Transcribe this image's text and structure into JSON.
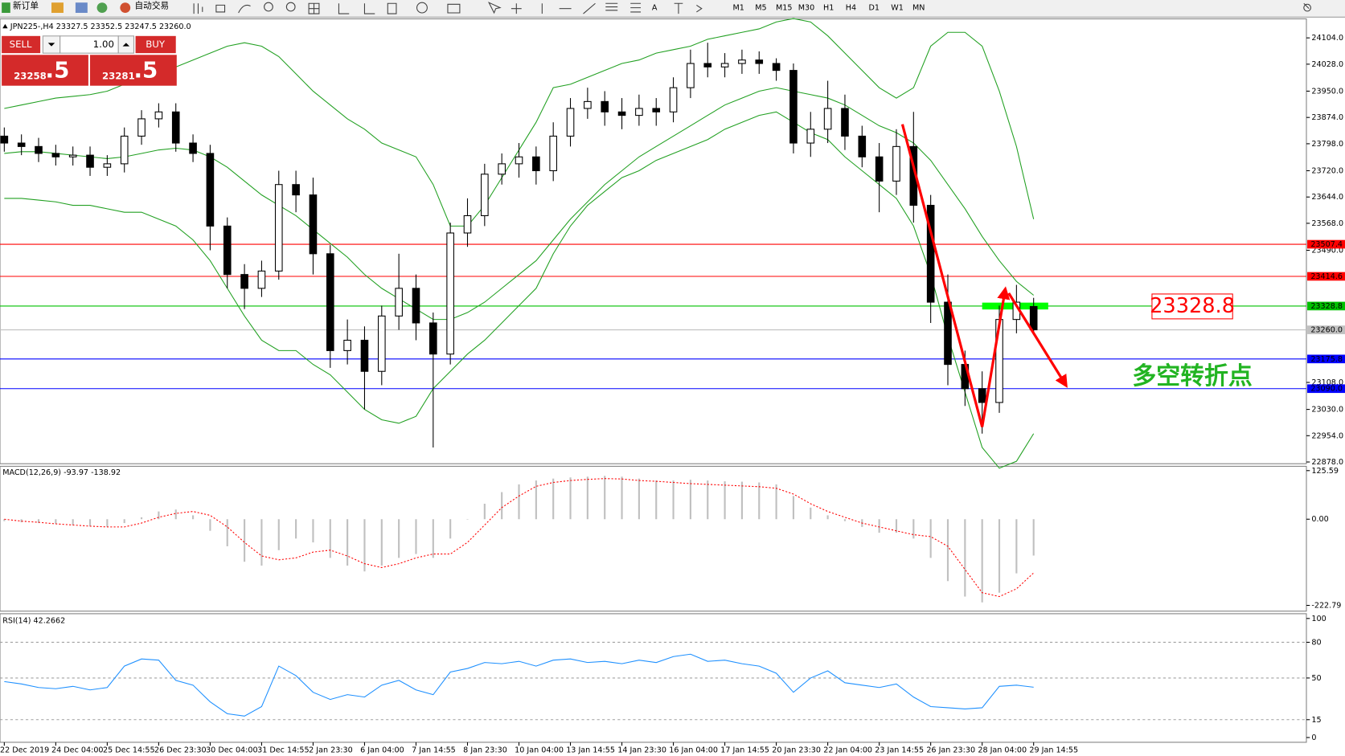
{
  "toolbar": {
    "new_order": "新订单",
    "auto_trade": "自动交易",
    "periods": [
      "M1",
      "M5",
      "M15",
      "M30",
      "H1",
      "H4",
      "D1",
      "W1",
      "MN"
    ]
  },
  "trade_panel": {
    "sell": "SELL",
    "buy": "BUY",
    "volume": "1.00",
    "bid_main": "23258",
    "bid_frac": ".5",
    "ask_main": "23281",
    "ask_frac": ".5"
  },
  "chart_data": {
    "type": "candlestick",
    "title": "JPN225-,H4  23327.5 23352.5 23247.5 23260.0",
    "categories": [
      "22 Dec 2019",
      null,
      null,
      "24 Dec 04:00",
      null,
      null,
      "25 Dec 14:55",
      null,
      null,
      "26 Dec 23:30",
      null,
      null,
      "30 Dec 04:00",
      null,
      null,
      "31 Dec 14:55",
      null,
      null,
      "2 Jan 23:30",
      null,
      null,
      "6 Jan 04:00",
      null,
      null,
      "7 Jan 14:55",
      null,
      null,
      "8 Jan 23:30",
      null,
      null,
      "10 Jan 04:00",
      null,
      null,
      "13 Jan 14:55",
      null,
      null,
      "14 Jan 23:30",
      null,
      null,
      "16 Jan 04:00",
      null,
      null,
      "17 Jan 14:55",
      null,
      null,
      "20 Jan 23:30",
      null,
      null,
      "22 Jan 04:00",
      null,
      null,
      "23 Jan 14:55",
      null,
      null,
      "26 Jan 23:30",
      null,
      null,
      "28 Jan 04:00",
      null,
      null,
      "29 Jan 14:55"
    ],
    "open": [
      23820,
      23800,
      23790,
      23770,
      23760,
      23765,
      23730,
      23740,
      23820,
      23870,
      23890,
      23800,
      23770,
      23560,
      23420,
      23380,
      23430,
      23680,
      23650,
      23480,
      23200,
      23230,
      23140,
      23300,
      23380,
      23280,
      23190,
      23540,
      23590,
      23710,
      23740,
      23760,
      23720,
      23820,
      23900,
      23920,
      23890,
      23880,
      23900,
      23890,
      23960,
      24030,
      24020,
      24030,
      24040,
      24030,
      24010,
      23800,
      23840,
      23900,
      23820,
      23760,
      23690,
      23790,
      23620,
      23340,
      23160,
      23090,
      23050,
      23290,
      23327.5
    ],
    "high": [
      23845,
      23825,
      23815,
      23795,
      23790,
      23790,
      23765,
      23845,
      23895,
      23915,
      23915,
      23825,
      23795,
      23585,
      23450,
      23460,
      23720,
      23720,
      23700,
      23505,
      23290,
      23270,
      23330,
      23480,
      23420,
      23310,
      23570,
      23640,
      23740,
      23770,
      23800,
      23790,
      23860,
      23930,
      23960,
      23950,
      23930,
      23940,
      23930,
      23990,
      24070,
      24090,
      24060,
      24070,
      24065,
      24045,
      24030,
      23890,
      23980,
      23940,
      23850,
      23800,
      23840,
      23890,
      23650,
      23420,
      23200,
      23140,
      23330,
      23390,
      23352.5
    ],
    "low": [
      23775,
      23765,
      23745,
      23735,
      23735,
      23705,
      23705,
      23715,
      23795,
      23845,
      23775,
      23745,
      23490,
      23380,
      23320,
      23355,
      23405,
      23600,
      23420,
      23150,
      23160,
      23030,
      23100,
      23260,
      23230,
      22920,
      23160,
      23500,
      23560,
      23680,
      23700,
      23680,
      23690,
      23790,
      23870,
      23850,
      23840,
      23850,
      23850,
      23860,
      23930,
      23990,
      23990,
      24000,
      24000,
      23980,
      23770,
      23760,
      23800,
      23780,
      23730,
      23600,
      23650,
      23570,
      23280,
      23100,
      23040,
      22960,
      23020,
      23250,
      23247.5
    ],
    "close": [
      23800,
      23790,
      23770,
      23760,
      23765,
      23730,
      23740,
      23820,
      23870,
      23890,
      23800,
      23770,
      23560,
      23420,
      23380,
      23430,
      23680,
      23650,
      23480,
      23200,
      23230,
      23140,
      23300,
      23380,
      23280,
      23190,
      23540,
      23590,
      23710,
      23740,
      23760,
      23720,
      23820,
      23900,
      23920,
      23890,
      23880,
      23900,
      23890,
      23960,
      24030,
      24020,
      24030,
      24040,
      24030,
      24010,
      23800,
      23840,
      23900,
      23820,
      23760,
      23690,
      23790,
      23620,
      23340,
      23160,
      23090,
      23050,
      23290,
      23340,
      23260.0
    ],
    "bands": {
      "color": "#22a022",
      "upper": [
        23900,
        23910,
        23920,
        23930,
        23935,
        23940,
        23950,
        23970,
        23990,
        24010,
        24020,
        24040,
        24060,
        24080,
        24090,
        24080,
        24050,
        24000,
        23950,
        23910,
        23870,
        23840,
        23800,
        23780,
        23760,
        23680,
        23560,
        23560,
        23620,
        23700,
        23780,
        23860,
        23960,
        23970,
        23990,
        24010,
        24030,
        24040,
        24060,
        24070,
        24080,
        24100,
        24110,
        24120,
        24130,
        24150,
        24160,
        24150,
        24110,
        24060,
        24010,
        23960,
        23930,
        23960,
        24080,
        24120,
        24120,
        24080,
        23950,
        23790,
        23580
      ],
      "middle": [
        23770,
        23775,
        23775,
        23770,
        23765,
        23760,
        23755,
        23760,
        23770,
        23780,
        23785,
        23780,
        23760,
        23730,
        23690,
        23650,
        23620,
        23590,
        23550,
        23510,
        23470,
        23420,
        23380,
        23350,
        23320,
        23290,
        23290,
        23310,
        23340,
        23380,
        23420,
        23460,
        23520,
        23580,
        23630,
        23680,
        23720,
        23760,
        23790,
        23820,
        23850,
        23880,
        23910,
        23930,
        23950,
        23960,
        23950,
        23940,
        23930,
        23910,
        23880,
        23850,
        23830,
        23800,
        23750,
        23680,
        23610,
        23530,
        23460,
        23400,
        23360
      ],
      "lower": [
        23640,
        23640,
        23635,
        23630,
        23620,
        23620,
        23610,
        23600,
        23600,
        23580,
        23560,
        23520,
        23460,
        23380,
        23300,
        23230,
        23200,
        23200,
        23160,
        23130,
        23080,
        23030,
        23000,
        22990,
        23010,
        23090,
        23140,
        23190,
        23230,
        23280,
        23330,
        23380,
        23480,
        23560,
        23620,
        23660,
        23700,
        23720,
        23750,
        23770,
        23790,
        23810,
        23840,
        23860,
        23880,
        23890,
        23860,
        23830,
        23810,
        23760,
        23720,
        23680,
        23640,
        23560,
        23420,
        23240,
        23080,
        22920,
        22860,
        22880,
        22960
      ]
    },
    "ylim": [
      22873,
      24159
    ],
    "yticks": [
      {
        "value": 24104,
        "label": "24104.0"
      },
      {
        "value": 24028,
        "label": "24028.0"
      },
      {
        "value": 23950,
        "label": "23950.0"
      },
      {
        "value": 23874,
        "label": "23874.0"
      },
      {
        "value": 23798,
        "label": "23798.0"
      },
      {
        "value": 23720,
        "label": "23720.0"
      },
      {
        "value": 23644,
        "label": "23644.0"
      },
      {
        "value": 23568,
        "label": "23568.0"
      },
      {
        "value": 23490,
        "label": "23490.0"
      },
      {
        "value": 23108,
        "label": "23108.0"
      },
      {
        "value": 23030,
        "label": "23030.0"
      },
      {
        "value": 22954,
        "label": "22954.0"
      },
      {
        "value": 22878,
        "label": "22878.0"
      }
    ],
    "levels": [
      {
        "price": 23507.4,
        "color": "#ff0000"
      },
      {
        "price": 23414.6,
        "color": "#ff0000"
      },
      {
        "price": 23328.8,
        "color": "#00c000"
      },
      {
        "price": 23260.0,
        "label": "23260.0",
        "color": "#c0c0c0"
      },
      {
        "price": 23175.8,
        "color": "#0000ff"
      },
      {
        "price": 23090.0,
        "label": "23090.0",
        "color": "#0000ff"
      }
    ],
    "annotations": {
      "price_box": "23328.8",
      "text": "多空转折点"
    },
    "macd": {
      "title": "MACD(12,26,9) -93.97 -138.92",
      "ylim": [
        -237.7,
        136.8
      ],
      "yticks": [
        125.59,
        {
          "value": 0,
          "label": "0.00"
        },
        -222.79
      ],
      "histogram_color": "#c0c0c0",
      "signal_color": "#ff0000",
      "histogram": [
        -5,
        -8,
        -10,
        -12,
        -15,
        -18,
        -20,
        -10,
        5,
        20,
        25,
        10,
        -30,
        -70,
        -110,
        -120,
        -80,
        -50,
        -60,
        -100,
        -120,
        -135,
        -120,
        -100,
        -90,
        -100,
        -50,
        0,
        40,
        70,
        90,
        100,
        105,
        108,
        110,
        112,
        110,
        105,
        100,
        100,
        102,
        100,
        98,
        97,
        95,
        90,
        60,
        30,
        10,
        -5,
        -20,
        -35,
        -35,
        -50,
        -100,
        -160,
        -200,
        -215,
        -190,
        -140,
        -93.97
      ],
      "signal": [
        0,
        -5,
        -8,
        -12,
        -15,
        -18,
        -20,
        -20,
        -10,
        5,
        15,
        20,
        10,
        -20,
        -60,
        -95,
        -105,
        -100,
        -85,
        -80,
        -95,
        -115,
        -125,
        -115,
        -100,
        -90,
        -90,
        -60,
        -15,
        30,
        60,
        85,
        95,
        100,
        103,
        105,
        104,
        100,
        98,
        95,
        92,
        90,
        88,
        86,
        84,
        80,
        65,
        40,
        20,
        5,
        -10,
        -20,
        -30,
        -40,
        -45,
        -70,
        -130,
        -190,
        -200,
        -180,
        -138.92
      ]
    },
    "rsi": {
      "title": "RSI(14) 42.2662",
      "ylim": [
        -4,
        104
      ],
      "yticks": [
        100,
        80,
        50,
        15,
        0
      ],
      "levels": [
        80,
        50,
        15
      ],
      "color": "#1e90ff",
      "values": [
        47,
        45,
        42,
        41,
        43,
        40,
        42,
        60,
        66,
        65,
        48,
        44,
        30,
        20,
        18,
        26,
        60,
        52,
        38,
        32,
        36,
        34,
        44,
        48,
        40,
        36,
        55,
        58,
        63,
        62,
        64,
        60,
        65,
        66,
        63,
        64,
        62,
        65,
        63,
        68,
        70,
        64,
        65,
        62,
        60,
        54,
        38,
        50,
        56,
        46,
        44,
        42,
        45,
        34,
        26,
        25,
        24,
        25,
        43,
        44,
        42.2662
      ]
    }
  }
}
